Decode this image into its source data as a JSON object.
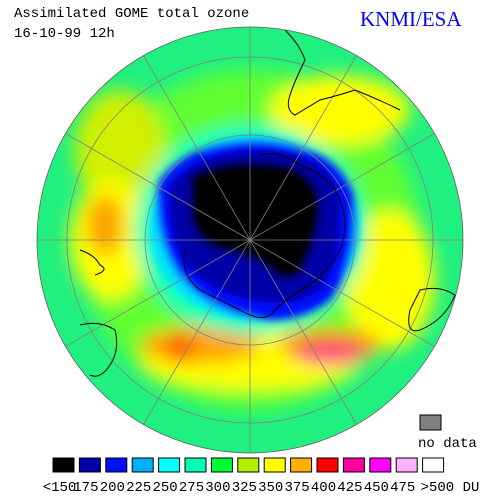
{
  "header": {
    "title": "Assimilated GOME total ozone",
    "date": "16-10-99 12h",
    "source": "KNMI/ESA"
  },
  "no_data": {
    "label": "no data",
    "color": "#808080"
  },
  "legend": [
    {
      "label": "<150",
      "color": "#000000"
    },
    {
      "label": "175",
      "color": "#0000a8"
    },
    {
      "label": "200",
      "color": "#0010ff"
    },
    {
      "label": "225",
      "color": "#00b0ff"
    },
    {
      "label": "250",
      "color": "#00ffff"
    },
    {
      "label": "275",
      "color": "#00ffb0"
    },
    {
      "label": "300",
      "color": "#00ff30"
    },
    {
      "label": "325",
      "color": "#b0f000"
    },
    {
      "label": "350",
      "color": "#ffff00"
    },
    {
      "label": "375",
      "color": "#ffb000"
    },
    {
      "label": "400",
      "color": "#ff0000"
    },
    {
      "label": "425",
      "color": "#ff00a0"
    },
    {
      "label": "450",
      "color": "#ff00ff"
    },
    {
      "label": "475",
      "color": "#ffb0ff"
    },
    {
      "label": ">500 DU",
      "color": "#ffffff"
    }
  ]
}
